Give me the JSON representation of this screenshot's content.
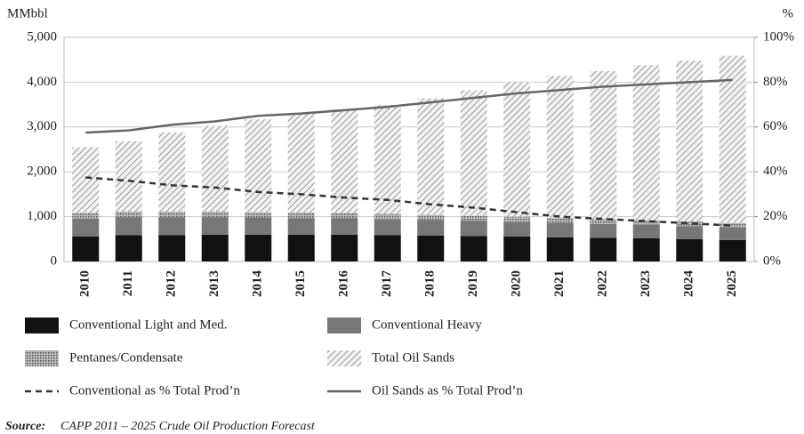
{
  "chart_data": {
    "type": "bar",
    "y_label": "MMbbl",
    "y2_label": "%",
    "categories": [
      "2010",
      "2011",
      "2012",
      "2013",
      "2014",
      "2015",
      "2016",
      "2017",
      "2018",
      "2019",
      "2020",
      "2021",
      "2022",
      "2023",
      "2024",
      "2025"
    ],
    "series": [
      {
        "name": "Conventional Light and Med.",
        "type": "bar",
        "color": "#111111",
        "values": [
          560,
          590,
          590,
          600,
          600,
          600,
          600,
          590,
          580,
          570,
          560,
          540,
          530,
          520,
          500,
          480
        ]
      },
      {
        "name": "Conventional Heavy",
        "type": "bar",
        "color": "#777777",
        "values": [
          400,
          400,
          400,
          390,
          380,
          370,
          370,
          360,
          350,
          340,
          330,
          320,
          310,
          300,
          290,
          280
        ]
      },
      {
        "name": "Pentanes/Condensate",
        "type": "bar",
        "color": "#888888",
        "hatch": "crosshatch",
        "values": [
          120,
          120,
          120,
          120,
          120,
          120,
          110,
          110,
          110,
          110,
          110,
          110,
          100,
          100,
          100,
          100
        ]
      },
      {
        "name": "Total Oil Sands",
        "type": "bar",
        "color": "#999999",
        "hatch": "diagonal",
        "values": [
          1470,
          1570,
          1770,
          1920,
          2070,
          2200,
          2310,
          2430,
          2600,
          2800,
          3000,
          3170,
          3310,
          3460,
          3590,
          3730
        ]
      },
      {
        "name": "Conventional as % Total Prod’n",
        "type": "line",
        "axis": "y2",
        "dash": true,
        "color": "#333333",
        "values": [
          37.5,
          36,
          34,
          33,
          31,
          30,
          28.5,
          27.5,
          25.5,
          24,
          22,
          20,
          19,
          18,
          17,
          16
        ]
      },
      {
        "name": "Oil Sands as % Total Prod’n",
        "type": "line",
        "axis": "y2",
        "color": "#666666",
        "values": [
          57.5,
          58.5,
          61,
          62.5,
          65,
          66,
          67.5,
          69,
          71,
          73,
          75,
          76.5,
          78,
          79,
          80,
          81
        ]
      }
    ],
    "ylim": [
      0,
      5000
    ],
    "yticks": [
      0,
      {
        "value": 1000,
        "label": "1,000"
      },
      {
        "value": 2000,
        "label": "2,000"
      },
      {
        "value": 3000,
        "label": "3,000"
      },
      {
        "value": 4000,
        "label": "4,000"
      },
      {
        "value": 5000,
        "label": "5,000"
      }
    ],
    "y2lim": [
      0,
      100
    ],
    "y2ticks": [
      {
        "value": 0,
        "label": "0%"
      },
      {
        "value": 20,
        "label": "20%"
      },
      {
        "value": 40,
        "label": "40%"
      },
      {
        "value": 60,
        "label": "60%"
      },
      {
        "value": 80,
        "label": "80%"
      },
      {
        "value": 100,
        "label": "100%"
      }
    ],
    "grid": true,
    "source_label": "Source:",
    "source": "CAPP 2011 – 2025 Crude Oil Production Forecast"
  }
}
